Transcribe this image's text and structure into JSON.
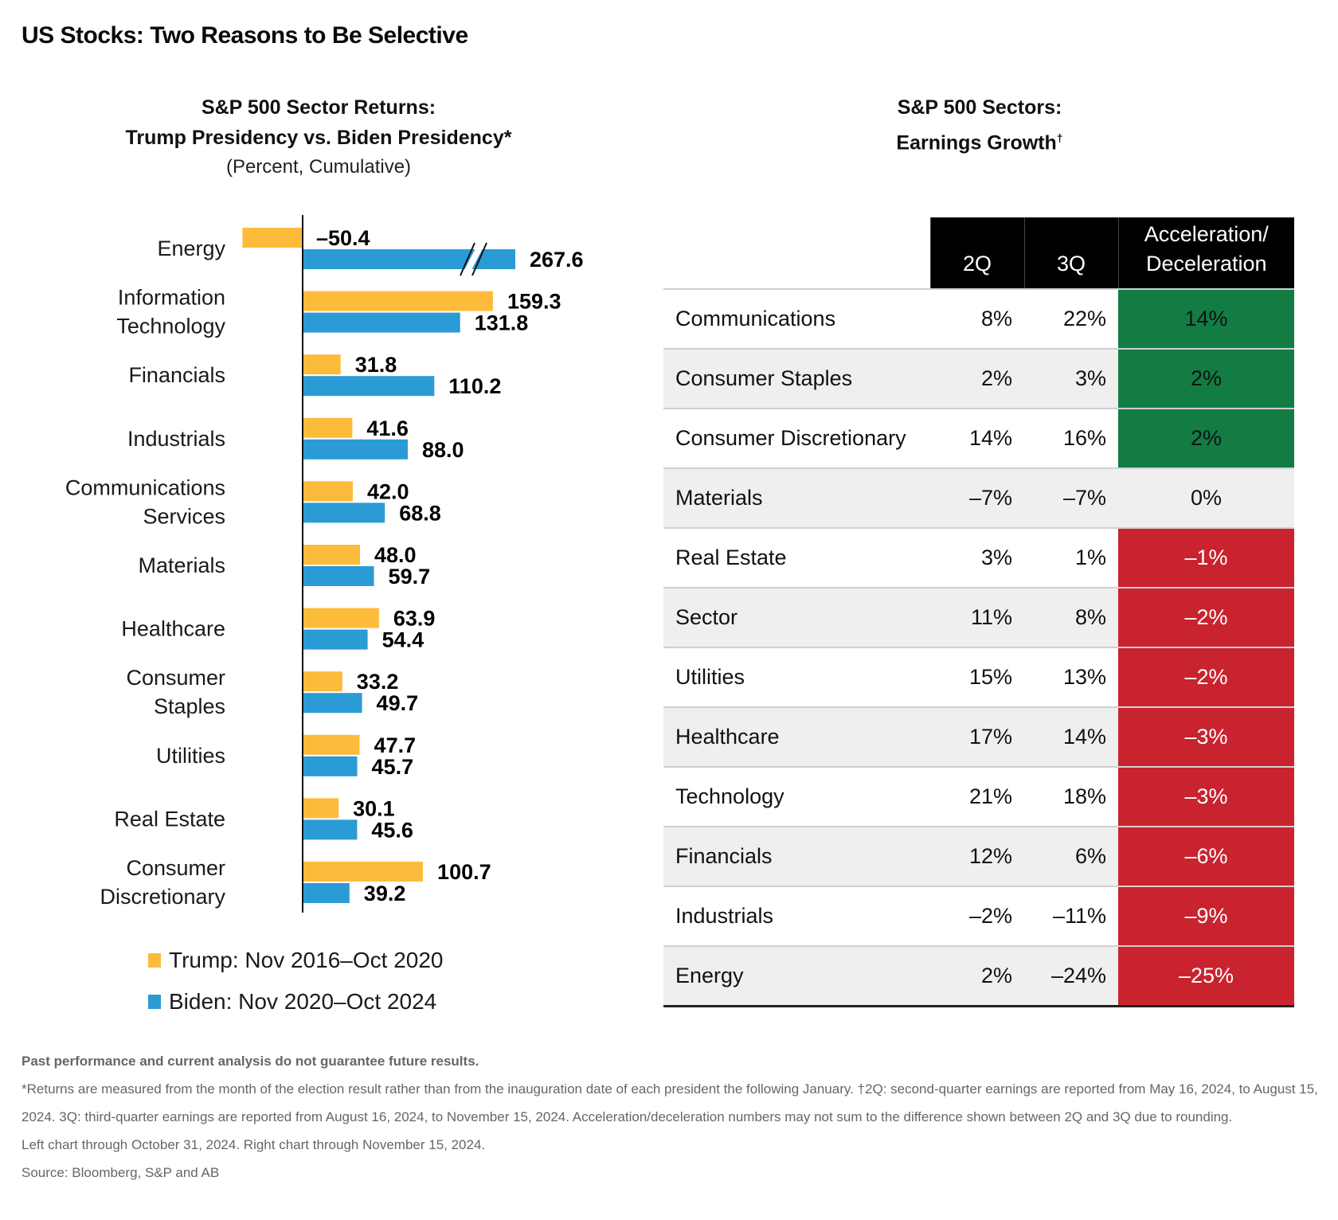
{
  "title": "US Stocks: Two Reasons to Be Selective",
  "left_panel": {
    "title_line1": "S&P 500 Sector Returns:",
    "title_line2": "Trump Presidency vs. Biden Presidency*",
    "subtitle": "(Percent, Cumulative)"
  },
  "right_panel": {
    "title_line1": "S&P 500 Sectors:",
    "title_line2": "Earnings Growth",
    "title_mark": "†"
  },
  "colors": {
    "trump": "#FDBB3B",
    "biden": "#2A9BD5",
    "acceleration": "#127C43",
    "deceleration": "#C8232F",
    "neutral": "#EFEFEF"
  },
  "chart_data": [
    {
      "type": "bar",
      "orientation": "horizontal",
      "title": "S&P 500 Sector Returns: Trump Presidency vs. Biden Presidency*",
      "subtitle": "(Percent, Cumulative)",
      "xlabel": "",
      "ylabel": "",
      "categories": [
        [
          "Energy"
        ],
        [
          "Information",
          "Technology"
        ],
        [
          "Financials"
        ],
        [
          "Industrials"
        ],
        [
          "Communications",
          "Services"
        ],
        [
          "Materials"
        ],
        [
          "Healthcare"
        ],
        [
          "Consumer",
          "Staples"
        ],
        [
          "Utilities"
        ],
        [
          "Real Estate"
        ],
        [
          "Consumer",
          "Discretionary"
        ]
      ],
      "series": [
        {
          "name": "Trump: Nov 2016–Oct 2020",
          "color": "#FDBB3B",
          "values": [
            -50.4,
            159.3,
            31.8,
            41.6,
            42.0,
            48.0,
            63.9,
            33.2,
            47.7,
            30.1,
            100.7
          ],
          "labels": [
            "–50.4",
            "159.3",
            "31.8",
            "41.6",
            "42.0",
            "48.0",
            "63.9",
            "33.2",
            "47.7",
            "30.1",
            "100.7"
          ]
        },
        {
          "name": "Biden: Nov 2020–Oct 2024",
          "color": "#2A9BD5",
          "values": [
            267.6,
            131.8,
            110.2,
            88.0,
            68.8,
            59.7,
            54.4,
            49.7,
            45.7,
            45.6,
            39.2
          ],
          "labels": [
            "267.6",
            "131.8",
            "110.2",
            "88.0",
            "68.8",
            "59.7",
            "54.4",
            "49.7",
            "45.7",
            "45.6",
            "39.2"
          ]
        }
      ],
      "axis_break": {
        "series": "Biden",
        "category": "Energy",
        "note": "bar truncated with break marks"
      },
      "legend": "bottom-left",
      "grid": false
    },
    {
      "type": "table",
      "title": "S&P 500 Sectors: Earnings Growth†",
      "columns": [
        "",
        "2Q",
        "3Q",
        "Acceleration/ Deceleration"
      ],
      "rows": [
        {
          "sector": "Communications",
          "q2": "8%",
          "q3": "22%",
          "acc": "14%",
          "status": "acceleration"
        },
        {
          "sector": "Consumer Staples",
          "q2": "2%",
          "q3": "3%",
          "acc": "2%",
          "status": "acceleration"
        },
        {
          "sector": "Consumer Discretionary",
          "q2": "14%",
          "q3": "16%",
          "acc": "2%",
          "status": "acceleration"
        },
        {
          "sector": "Materials",
          "q2": "–7%",
          "q3": "–7%",
          "acc": "0%",
          "status": "neutral"
        },
        {
          "sector": "Real Estate",
          "q2": "3%",
          "q3": "1%",
          "acc": "–1%",
          "status": "deceleration"
        },
        {
          "sector": "Sector",
          "q2": "11%",
          "q3": "8%",
          "acc": "–2%",
          "status": "deceleration"
        },
        {
          "sector": "Utilities",
          "q2": "15%",
          "q3": "13%",
          "acc": "–2%",
          "status": "deceleration"
        },
        {
          "sector": "Healthcare",
          "q2": "17%",
          "q3": "14%",
          "acc": "–3%",
          "status": "deceleration"
        },
        {
          "sector": "Technology",
          "q2": "21%",
          "q3": "18%",
          "acc": "–3%",
          "status": "deceleration"
        },
        {
          "sector": "Financials",
          "q2": "12%",
          "q3": "6%",
          "acc": "–6%",
          "status": "deceleration"
        },
        {
          "sector": "Industrials",
          "q2": "–2%",
          "q3": "–11%",
          "acc": "–9%",
          "status": "deceleration"
        },
        {
          "sector": "Energy",
          "q2": "2%",
          "q3": "–24%",
          "acc": "–25%",
          "status": "deceleration"
        }
      ]
    }
  ],
  "table_header": {
    "q2": "2Q",
    "q3": "3Q",
    "acc_line1": "Acceleration/",
    "acc_line2": "Deceleration"
  },
  "legend": {
    "trump": "Trump: Nov 2016–Oct 2020",
    "biden": "Biden: Nov 2020–Oct 2024"
  },
  "footnotes": {
    "disclaimer": "Past performance and current analysis do not guarantee future results.",
    "note1": "*Returns are measured from the month of the election result rather than from the inauguration date of each president the following January. †2Q: second-quarter earnings are reported from May 16, 2024, to August 15, 2024. 3Q: third-quarter earnings are reported from August 16, 2024, to November 15, 2024. Acceleration/deceleration numbers may not sum to the difference shown between 2Q and 3Q due to rounding.",
    "note2": "Left chart through October 31, 2024. Right chart through November 15, 2024.",
    "source": "Source: Bloomberg, S&P and AB"
  }
}
